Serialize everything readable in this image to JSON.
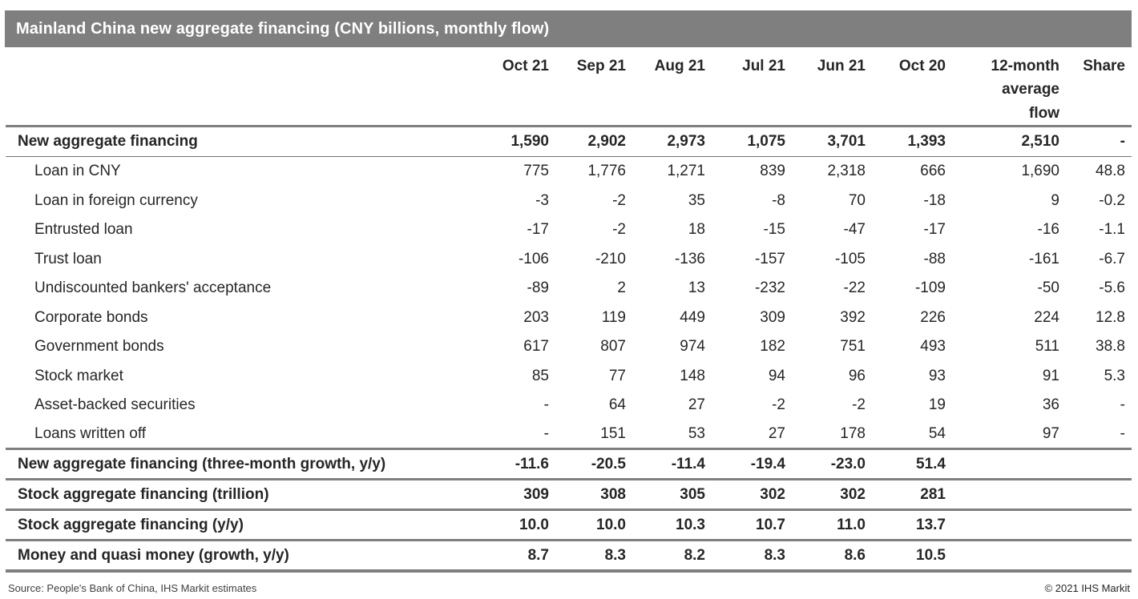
{
  "chart_data": {
    "type": "table",
    "title": "Mainland China new aggregate financing (CNY billions, monthly flow)",
    "columns": [
      "Oct 21",
      "Sep 21",
      "Aug 21",
      "Jul 21",
      "Jun 21",
      "Oct 20",
      "12-month average flow",
      "Share"
    ],
    "rows": [
      {
        "label": "New aggregate financing",
        "values": [
          "1,590",
          "2,902",
          "2,973",
          "1,075",
          "3,701",
          "1,393",
          "2,510",
          "-"
        ]
      },
      {
        "label": "Loan in CNY",
        "values": [
          "775",
          "1,776",
          "1,271",
          "839",
          "2,318",
          "666",
          "1,690",
          "48.8"
        ]
      },
      {
        "label": "Loan in foreign currency",
        "values": [
          "-3",
          "-2",
          "35",
          "-8",
          "70",
          "-18",
          "9",
          "-0.2"
        ]
      },
      {
        "label": "Entrusted loan",
        "values": [
          "-17",
          "-2",
          "18",
          "-15",
          "-47",
          "-17",
          "-16",
          "-1.1"
        ]
      },
      {
        "label": "Trust loan",
        "values": [
          "-106",
          "-210",
          "-136",
          "-157",
          "-105",
          "-88",
          "-161",
          "-6.7"
        ]
      },
      {
        "label": "Undiscounted bankers' acceptance",
        "values": [
          "-89",
          "2",
          "13",
          "-232",
          "-22",
          "-109",
          "-50",
          "-5.6"
        ]
      },
      {
        "label": "Corporate bonds",
        "values": [
          "203",
          "119",
          "449",
          "309",
          "392",
          "226",
          "224",
          "12.8"
        ]
      },
      {
        "label": "Government bonds",
        "values": [
          "617",
          "807",
          "974",
          "182",
          "751",
          "493",
          "511",
          "38.8"
        ]
      },
      {
        "label": "Stock market",
        "values": [
          "85",
          "77",
          "148",
          "94",
          "96",
          "93",
          "91",
          "5.3"
        ]
      },
      {
        "label": "Asset-backed securities",
        "values": [
          "-",
          "64",
          "27",
          "-2",
          "-2",
          "19",
          "36",
          "-"
        ]
      },
      {
        "label": "Loans written off",
        "values": [
          "-",
          "151",
          "53",
          "27",
          "178",
          "54",
          "97",
          "-"
        ]
      },
      {
        "label": "New aggregate financing (three-month growth, y/y)",
        "values": [
          "-11.6",
          "-20.5",
          "-11.4",
          "-19.4",
          "-23.0",
          "51.4",
          "",
          ""
        ]
      },
      {
        "label": "Stock aggregate financing (trillion)",
        "values": [
          "309",
          "308",
          "305",
          "302",
          "302",
          "281",
          "",
          ""
        ]
      },
      {
        "label": "Stock aggregate financing (y/y)",
        "values": [
          "10.0",
          "10.0",
          "10.3",
          "10.7",
          "11.0",
          "13.7",
          "",
          ""
        ]
      },
      {
        "label": "Money and quasi money (growth, y/y)",
        "values": [
          "8.7",
          "8.3",
          "8.2",
          "8.3",
          "8.6",
          "10.5",
          "",
          ""
        ]
      }
    ],
    "source": "Source: People's Bank of China, IHS Markit estimates",
    "legend_position": "none",
    "grid": "horizontal-rules-only"
  },
  "ui": {
    "column_display_overrides": {
      "6": "12-month\naverage\nflow"
    },
    "row_types": [
      "total",
      "sub",
      "sub",
      "sub",
      "sub",
      "sub",
      "sub",
      "sub",
      "sub",
      "sub",
      "sub",
      "section",
      "section",
      "section",
      "section last"
    ],
    "footer": {
      "source": "Source: People's Bank of China, IHS Markit estimates",
      "copyright": "© 2021 IHS Markit"
    },
    "colors": {
      "header_bar": "#7f7f7f",
      "rule_thick": "#7f7f7f",
      "rule_thin": "#737373",
      "text": "#262626",
      "title_text": "#ffffff",
      "footer_text": "#404040"
    }
  }
}
